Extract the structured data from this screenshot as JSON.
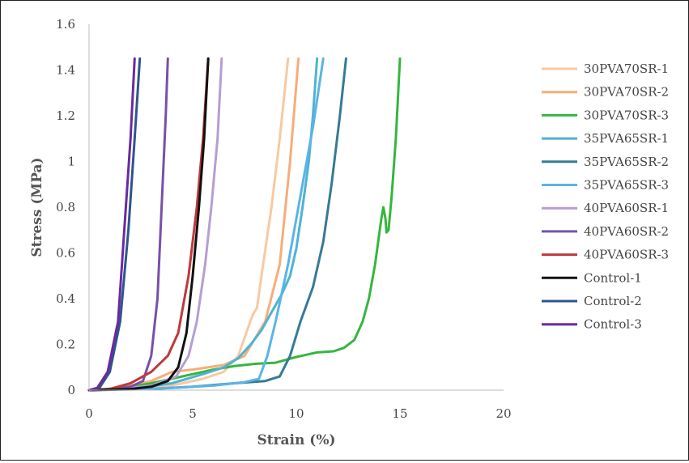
{
  "chart_data": {
    "type": "line",
    "xlabel": "Strain (%)",
    "ylabel": "Stress (MPa)",
    "xlim": [
      0,
      20
    ],
    "ylim": [
      0,
      1.6
    ],
    "x_ticks": [
      "0",
      "5",
      "10",
      "15",
      "20"
    ],
    "y_ticks": [
      "0",
      "0.2",
      "0.4",
      "0.6",
      "0.8",
      "1",
      "1.2",
      "1.4",
      "1.6"
    ],
    "grid": false,
    "legend_position": "right",
    "series": [
      {
        "name": "30PVA70SR-1",
        "color": "#f8c9a2",
        "points": [
          [
            0,
            0
          ],
          [
            2,
            0.005
          ],
          [
            4,
            0.02
          ],
          [
            5.5,
            0.05
          ],
          [
            6.5,
            0.08
          ],
          [
            7.2,
            0.15
          ],
          [
            7.7,
            0.28
          ],
          [
            7.9,
            0.33
          ],
          [
            8.1,
            0.36
          ],
          [
            8.4,
            0.55
          ],
          [
            8.8,
            0.8
          ],
          [
            9.2,
            1.1
          ],
          [
            9.6,
            1.45
          ]
        ]
      },
      {
        "name": "30PVA70SR-2",
        "color": "#f7ad78",
        "points": [
          [
            0,
            0
          ],
          [
            1.5,
            0.01
          ],
          [
            3,
            0.04
          ],
          [
            4,
            0.08
          ],
          [
            5,
            0.09
          ],
          [
            6.5,
            0.11
          ],
          [
            7.5,
            0.15
          ],
          [
            8.5,
            0.3
          ],
          [
            9.2,
            0.55
          ],
          [
            9.7,
            1.0
          ],
          [
            10.1,
            1.45
          ]
        ]
      },
      {
        "name": "30PVA70SR-3",
        "color": "#35b63f",
        "points": [
          [
            0,
            0
          ],
          [
            1,
            0.005
          ],
          [
            2,
            0.015
          ],
          [
            3,
            0.03
          ],
          [
            4,
            0.05
          ],
          [
            5,
            0.07
          ],
          [
            6,
            0.09
          ],
          [
            7,
            0.105
          ],
          [
            8,
            0.115
          ],
          [
            9,
            0.12
          ],
          [
            10,
            0.145
          ],
          [
            11,
            0.165
          ],
          [
            11.8,
            0.17
          ],
          [
            12.3,
            0.185
          ],
          [
            12.8,
            0.22
          ],
          [
            13.2,
            0.3
          ],
          [
            13.5,
            0.4
          ],
          [
            13.8,
            0.55
          ],
          [
            14.1,
            0.75
          ],
          [
            14.2,
            0.8
          ],
          [
            14.3,
            0.75
          ],
          [
            14.35,
            0.69
          ],
          [
            14.45,
            0.7
          ],
          [
            14.6,
            0.85
          ],
          [
            14.8,
            1.1
          ],
          [
            15.0,
            1.45
          ]
        ]
      },
      {
        "name": "35PVA65SR-1",
        "color": "#4eb3d3",
        "points": [
          [
            0,
            0
          ],
          [
            2,
            0.005
          ],
          [
            4,
            0.03
          ],
          [
            5.5,
            0.07
          ],
          [
            6.5,
            0.1
          ],
          [
            7.2,
            0.14
          ],
          [
            7.8,
            0.2
          ],
          [
            8.3,
            0.26
          ],
          [
            8.8,
            0.34
          ],
          [
            9.3,
            0.42
          ],
          [
            9.7,
            0.5
          ],
          [
            10.0,
            0.62
          ],
          [
            10.3,
            0.8
          ],
          [
            10.6,
            1.0
          ],
          [
            10.8,
            1.2
          ],
          [
            11.0,
            1.45
          ]
        ]
      },
      {
        "name": "35PVA65SR-2",
        "color": "#377a96",
        "points": [
          [
            0,
            0
          ],
          [
            3,
            0.005
          ],
          [
            5,
            0.015
          ],
          [
            7,
            0.03
          ],
          [
            8.5,
            0.04
          ],
          [
            9.2,
            0.06
          ],
          [
            9.7,
            0.15
          ],
          [
            10.2,
            0.3
          ],
          [
            10.8,
            0.45
          ],
          [
            11.3,
            0.65
          ],
          [
            11.7,
            0.9
          ],
          [
            12.1,
            1.2
          ],
          [
            12.4,
            1.45
          ]
        ]
      },
      {
        "name": "35PVA65SR-3",
        "color": "#5ab4e6",
        "points": [
          [
            0,
            0
          ],
          [
            2,
            0.005
          ],
          [
            4,
            0.01
          ],
          [
            6,
            0.02
          ],
          [
            7.5,
            0.035
          ],
          [
            8.2,
            0.05
          ],
          [
            8.6,
            0.15
          ],
          [
            9,
            0.3
          ],
          [
            9.6,
            0.55
          ],
          [
            10.2,
            0.85
          ],
          [
            10.8,
            1.15
          ],
          [
            11.3,
            1.45
          ]
        ]
      },
      {
        "name": "40PVA60SR-1",
        "color": "#b59ed4",
        "points": [
          [
            0,
            0
          ],
          [
            1.5,
            0.005
          ],
          [
            3,
            0.02
          ],
          [
            4.2,
            0.06
          ],
          [
            4.8,
            0.15
          ],
          [
            5.2,
            0.3
          ],
          [
            5.6,
            0.55
          ],
          [
            5.9,
            0.8
          ],
          [
            6.2,
            1.1
          ],
          [
            6.4,
            1.45
          ]
        ]
      },
      {
        "name": "40PVA60SR-2",
        "color": "#7950a8",
        "points": [
          [
            0,
            0
          ],
          [
            1,
            0.005
          ],
          [
            2,
            0.015
          ],
          [
            2.6,
            0.04
          ],
          [
            3.0,
            0.15
          ],
          [
            3.3,
            0.4
          ],
          [
            3.5,
            0.8
          ],
          [
            3.7,
            1.2
          ],
          [
            3.8,
            1.45
          ]
        ]
      },
      {
        "name": "40PVA60SR-3",
        "color": "#c0393b",
        "points": [
          [
            0,
            0
          ],
          [
            1,
            0.005
          ],
          [
            2,
            0.03
          ],
          [
            3,
            0.08
          ],
          [
            3.8,
            0.15
          ],
          [
            4.3,
            0.25
          ],
          [
            4.8,
            0.5
          ],
          [
            5.2,
            0.8
          ],
          [
            5.5,
            1.1
          ],
          [
            5.75,
            1.45
          ]
        ]
      },
      {
        "name": "Control-1",
        "color": "#111111",
        "points": [
          [
            0,
            0
          ],
          [
            2,
            0.005
          ],
          [
            3,
            0.015
          ],
          [
            3.8,
            0.04
          ],
          [
            4.3,
            0.1
          ],
          [
            4.7,
            0.25
          ],
          [
            5.0,
            0.5
          ],
          [
            5.3,
            0.8
          ],
          [
            5.55,
            1.1
          ],
          [
            5.75,
            1.45
          ]
        ]
      },
      {
        "name": "Control-2",
        "color": "#2e5590",
        "points": [
          [
            0,
            0
          ],
          [
            0.5,
            0.01
          ],
          [
            1.0,
            0.08
          ],
          [
            1.5,
            0.3
          ],
          [
            1.9,
            0.7
          ],
          [
            2.2,
            1.1
          ],
          [
            2.45,
            1.45
          ]
        ]
      },
      {
        "name": "Control-3",
        "color": "#6a2aa0",
        "points": [
          [
            0,
            0
          ],
          [
            0.4,
            0.01
          ],
          [
            0.9,
            0.08
          ],
          [
            1.4,
            0.3
          ],
          [
            1.7,
            0.7
          ],
          [
            2.0,
            1.1
          ],
          [
            2.2,
            1.45
          ]
        ]
      }
    ]
  }
}
